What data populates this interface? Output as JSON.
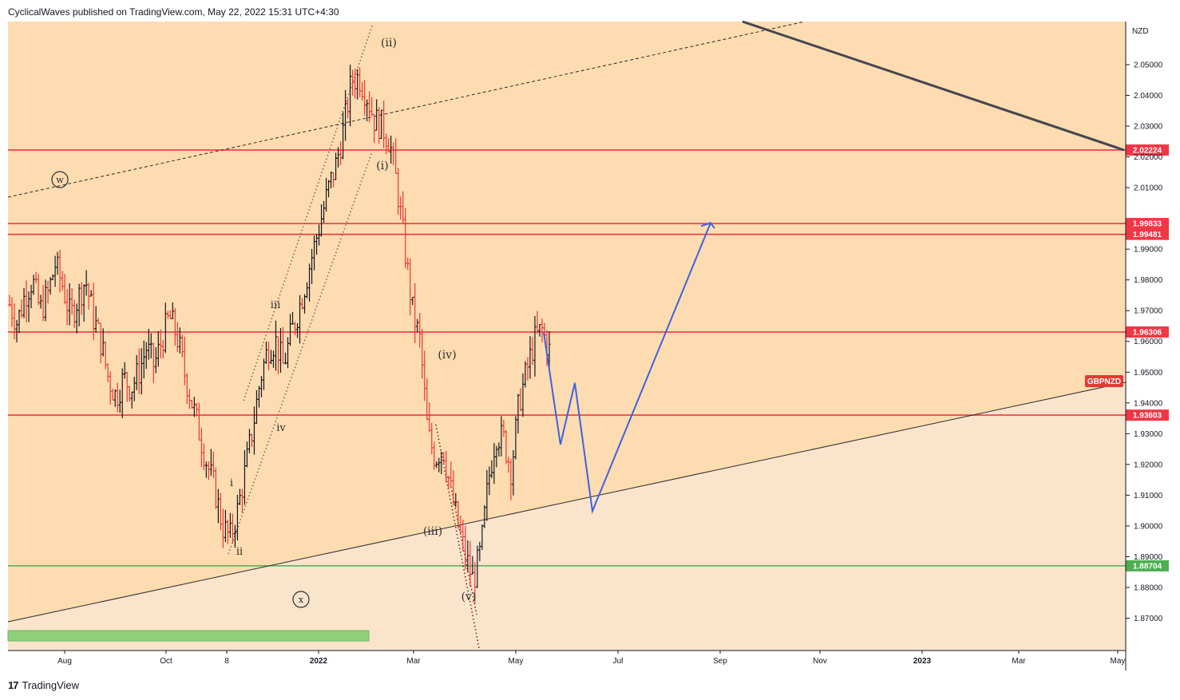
{
  "header": {
    "attribution": "CyclicalWaves published on TradingView.com, May 22, 2022 15:31 UTC+4:30"
  },
  "footer": {
    "logo_glyph": "17",
    "brand": "TradingView"
  },
  "colors": {
    "top_zone": "#fcdcb0",
    "bottom_zone": "#fbe4cc",
    "red_line": "#f23645",
    "green_line": "#4caf50",
    "bull_candle": "#131722",
    "bear_candle": "#e53935",
    "projection": "#3c63e0",
    "trendline_dark": "#434651"
  },
  "chart_data": {
    "type": "candlestick",
    "symbol": "GBPNZD",
    "currency": "NZD",
    "y_ticks": [
      "2.05000",
      "2.04000",
      "2.03000",
      "2.02000",
      "2.01000",
      "1.99000",
      "1.98000",
      "1.97000",
      "1.96000",
      "1.95000",
      "1.94000",
      "1.93000",
      "1.92000",
      "1.91000",
      "1.90000",
      "1.89000",
      "1.88000",
      "1.87000"
    ],
    "x_ticks": [
      "Aug",
      "Oct",
      "8",
      "2022",
      "Mar",
      "May",
      "Jul",
      "Sep",
      "Nov",
      "2023",
      "Mar",
      "May"
    ],
    "ylim": [
      1.8595,
      2.064
    ],
    "horizontal_levels": [
      {
        "price": 2.02224,
        "label": "2.02224",
        "color": "red"
      },
      {
        "price": 1.99833,
        "label": "1.99833",
        "color": "red"
      },
      {
        "price": 1.99481,
        "label": "1.99481",
        "color": "red"
      },
      {
        "price": 1.96306,
        "label": "1.96306",
        "color": "red"
      },
      {
        "price": 1.93603,
        "label": "1.93603",
        "color": "red"
      },
      {
        "price": 1.88704,
        "label": "1.88704",
        "color": "green"
      }
    ],
    "wave_labels": [
      {
        "text": "w",
        "circled": true
      },
      {
        "text": "x",
        "circled": true
      },
      {
        "text": "i"
      },
      {
        "text": "ii"
      },
      {
        "text": "iii"
      },
      {
        "text": "iv"
      },
      {
        "text": "(i)"
      },
      {
        "text": "(ii)"
      },
      {
        "text": "(iii)"
      },
      {
        "text": "(iv)"
      },
      {
        "text": "(v)"
      }
    ],
    "price_path_approx": [
      1.972,
      1.966,
      1.975,
      1.98,
      1.97,
      1.975,
      1.985,
      1.978,
      1.968,
      1.974,
      1.98,
      1.968,
      1.96,
      1.948,
      1.942,
      1.948,
      1.945,
      1.95,
      1.958,
      1.952,
      1.96,
      1.968,
      1.962,
      1.95,
      1.94,
      1.93,
      1.92,
      1.912,
      1.9,
      1.896,
      1.905,
      1.918,
      1.932,
      1.948,
      1.958,
      1.96,
      1.952,
      1.962,
      1.97,
      1.98,
      1.99,
      2.0,
      2.01,
      2.018,
      2.03,
      2.045,
      2.046,
      2.04,
      2.032,
      2.03,
      2.025,
      2.01,
      1.99,
      1.97,
      1.96,
      1.93,
      1.922,
      1.926,
      1.912,
      1.9,
      1.89,
      1.882,
      1.892,
      1.915,
      1.93,
      1.928,
      1.918,
      1.94,
      1.95,
      1.96,
      1.964,
      1.957
    ],
    "projection_path": [
      1.963,
      1.9265,
      1.9465,
      1.9048,
      1.9985,
      1.9968
    ],
    "legend_tag": "GBPNZD"
  }
}
